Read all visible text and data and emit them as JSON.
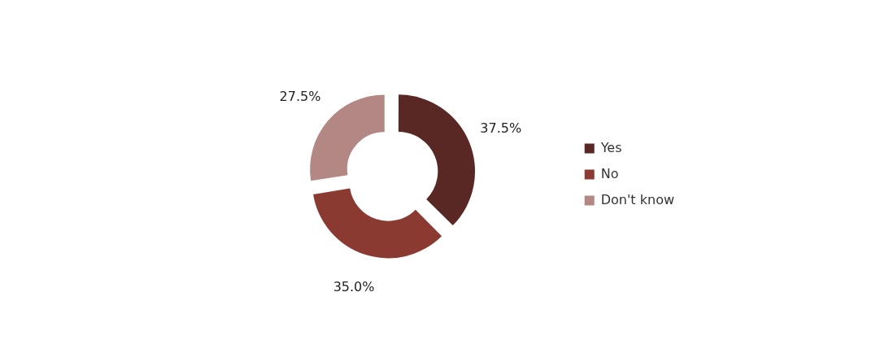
{
  "chart_data": {
    "type": "donut",
    "categories": [
      "Yes",
      "No",
      "Don't know"
    ],
    "values": [
      37.5,
      35.0,
      27.5
    ],
    "colors": [
      "#5a2824",
      "#8a3a30",
      "#b38884"
    ],
    "value_labels": [
      "37.5%",
      "35.0%",
      "27.5%"
    ],
    "legend": "right"
  }
}
